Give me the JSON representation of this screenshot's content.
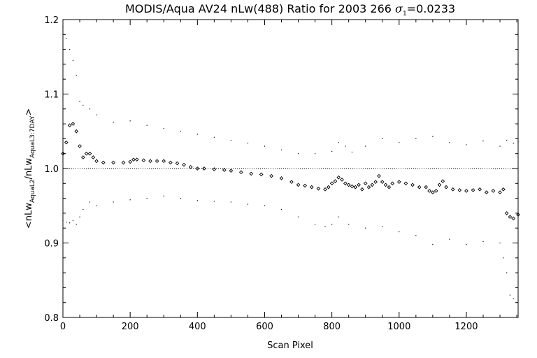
{
  "chart_data": {
    "type": "scatter",
    "title_main": "MODIS/Aqua AV24 nLw(488) Ratio for 2003 266 ",
    "title_sigma": "σ",
    "title_sigma_sub": "1",
    "title_sigma_value": "=0.0233",
    "xlabel": "Scan Pixel",
    "ylabel_open": "<nLw",
    "ylabel_sub1": "AquaL2",
    "ylabel_mid": "/nLw",
    "ylabel_sub2": "AquaL3:7DAY",
    "ylabel_close": ">",
    "xlim": [
      0,
      1354
    ],
    "ylim": [
      0.8,
      1.2
    ],
    "xticks": [
      0,
      200,
      400,
      600,
      800,
      1000,
      1200
    ],
    "xtick_labels": [
      "0",
      "200",
      "400",
      "600",
      "800",
      "1000",
      "1200"
    ],
    "yticks": [
      0.8,
      0.9,
      1.0,
      1.1,
      1.2
    ],
    "ytick_labels": [
      "0.8",
      "0.9",
      "1.0",
      "1.1",
      "1.2"
    ],
    "reference_line": 1.0,
    "series": [
      {
        "role": "mean ratio",
        "marker": "diamond",
        "x": [
          0,
          10,
          20,
          30,
          40,
          50,
          60,
          70,
          80,
          90,
          100,
          120,
          150,
          180,
          200,
          210,
          220,
          240,
          260,
          280,
          300,
          320,
          340,
          360,
          380,
          400,
          420,
          450,
          480,
          500,
          530,
          560,
          590,
          620,
          650,
          680,
          700,
          720,
          740,
          760,
          780,
          790,
          800,
          810,
          820,
          830,
          840,
          850,
          860,
          870,
          880,
          890,
          900,
          910,
          920,
          930,
          940,
          950,
          960,
          970,
          980,
          1000,
          1020,
          1040,
          1060,
          1080,
          1090,
          1100,
          1110,
          1120,
          1130,
          1140,
          1160,
          1180,
          1200,
          1220,
          1240,
          1260,
          1280,
          1300,
          1310,
          1320,
          1330,
          1340,
          1354
        ],
        "y": [
          1.02,
          1.035,
          1.058,
          1.06,
          1.05,
          1.03,
          1.015,
          1.02,
          1.02,
          1.015,
          1.01,
          1.008,
          1.008,
          1.008,
          1.009,
          1.012,
          1.012,
          1.011,
          1.01,
          1.01,
          1.01,
          1.008,
          1.007,
          1.005,
          1.002,
          1.0,
          1.0,
          0.999,
          0.998,
          0.997,
          0.995,
          0.993,
          0.992,
          0.99,
          0.987,
          0.982,
          0.978,
          0.977,
          0.975,
          0.973,
          0.972,
          0.975,
          0.98,
          0.983,
          0.988,
          0.985,
          0.98,
          0.978,
          0.976,
          0.975,
          0.978,
          0.972,
          0.98,
          0.975,
          0.978,
          0.982,
          0.99,
          0.982,
          0.978,
          0.975,
          0.98,
          0.982,
          0.98,
          0.978,
          0.975,
          0.975,
          0.97,
          0.968,
          0.97,
          0.978,
          0.983,
          0.975,
          0.972,
          0.971,
          0.97,
          0.971,
          0.972,
          0.968,
          0.97,
          0.968,
          0.972,
          0.94,
          0.935,
          0.933,
          0.938
        ]
      },
      {
        "role": "upper bound",
        "marker": "dot",
        "x": [
          0,
          10,
          20,
          30,
          40,
          50,
          60,
          80,
          100,
          150,
          200,
          250,
          300,
          350,
          400,
          450,
          500,
          550,
          600,
          650,
          700,
          750,
          800,
          820,
          840,
          860,
          900,
          950,
          1000,
          1050,
          1100,
          1150,
          1200,
          1250,
          1300,
          1320,
          1340,
          1354
        ],
        "y": [
          1.19,
          1.175,
          1.16,
          1.145,
          1.125,
          1.09,
          1.085,
          1.08,
          1.072,
          1.062,
          1.064,
          1.058,
          1.054,
          1.05,
          1.046,
          1.042,
          1.038,
          1.034,
          1.03,
          1.025,
          1.02,
          1.02,
          1.023,
          1.035,
          1.03,
          1.022,
          1.03,
          1.04,
          1.035,
          1.04,
          1.043,
          1.035,
          1.032,
          1.037,
          1.03,
          1.038,
          1.034,
          1.036
        ]
      },
      {
        "role": "lower bound",
        "marker": "dot",
        "x": [
          0,
          10,
          20,
          30,
          40,
          50,
          60,
          80,
          100,
          150,
          200,
          250,
          300,
          350,
          400,
          450,
          500,
          550,
          600,
          650,
          700,
          750,
          780,
          800,
          820,
          850,
          900,
          950,
          1000,
          1050,
          1100,
          1150,
          1200,
          1250,
          1300,
          1310,
          1320,
          1330,
          1340
        ],
        "y": [
          0.93,
          0.928,
          0.927,
          0.93,
          0.925,
          0.935,
          0.945,
          0.955,
          0.95,
          0.955,
          0.958,
          0.96,
          0.963,
          0.96,
          0.957,
          0.956,
          0.955,
          0.952,
          0.95,
          0.945,
          0.935,
          0.925,
          0.922,
          0.925,
          0.935,
          0.925,
          0.92,
          0.922,
          0.915,
          0.91,
          0.898,
          0.905,
          0.898,
          0.902,
          0.9,
          0.88,
          0.86,
          0.83,
          0.825
        ]
      }
    ]
  }
}
